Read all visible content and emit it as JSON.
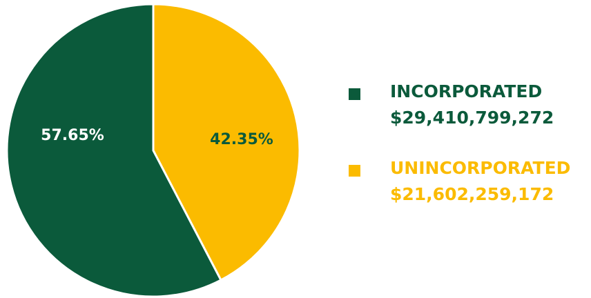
{
  "chart_data": {
    "type": "pie",
    "categories": [
      "INCORPORATED",
      "UNINCORPORATED"
    ],
    "values": [
      57.65,
      42.35
    ],
    "value_labels": [
      "57.65%",
      "42.35%"
    ],
    "amounts": [
      "$29,410,799,272",
      "$21,602,259,172"
    ],
    "colors": [
      "#0b5a3b",
      "#fbbb00"
    ],
    "label_colors": [
      "#ffffff",
      "#0b5a3b"
    ]
  }
}
